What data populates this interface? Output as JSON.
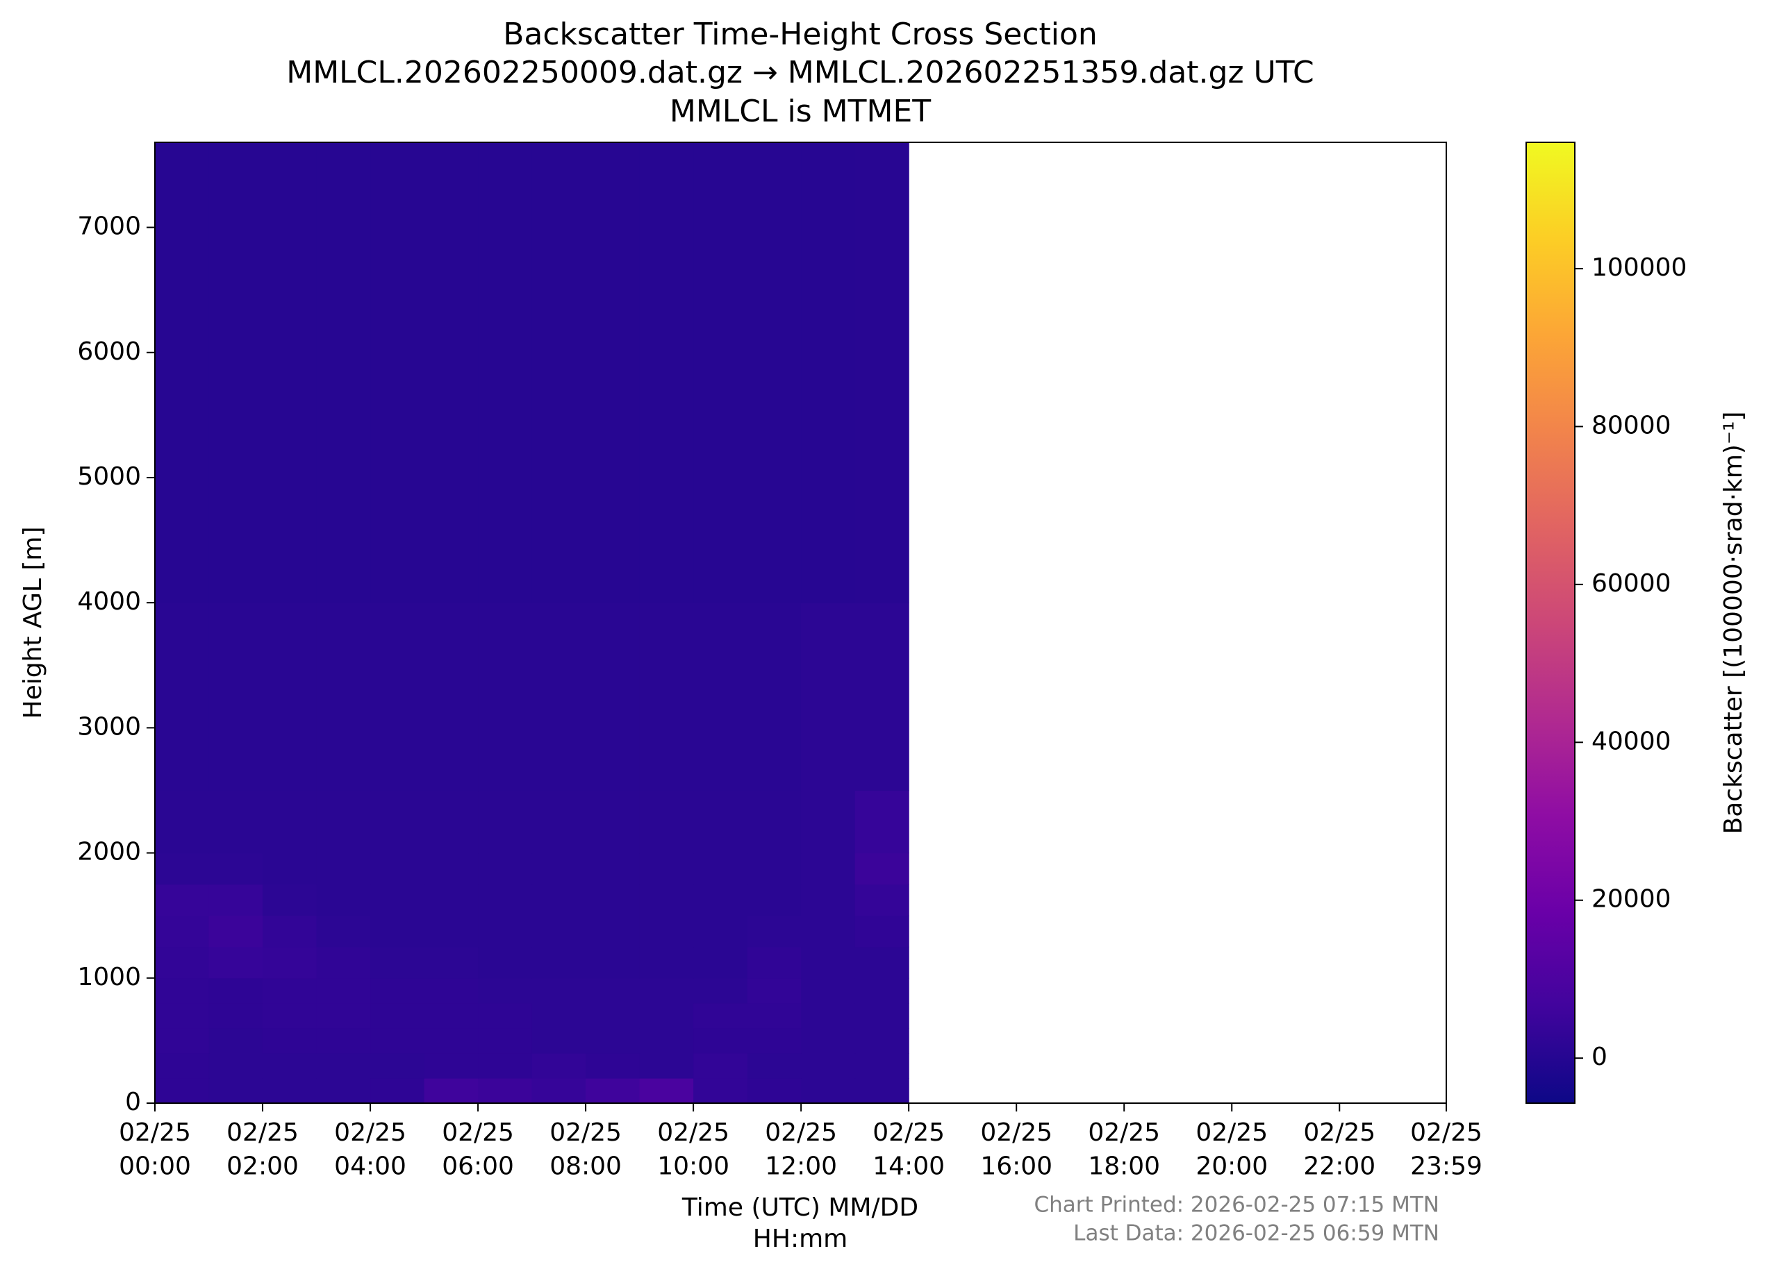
{
  "chart_data": {
    "type": "heatmap",
    "title": [
      "Backscatter Time-Height Cross Section",
      "MMLCL.202602250009.dat.gz → MMLCL.202602251359.dat.gz UTC",
      "MMLCL is MTMET"
    ],
    "xlabel": [
      "Time (UTC) MM/DD",
      "HH:mm"
    ],
    "ylabel": "Height AGL [m]",
    "colorbar_label": "Backscatter [(100000·srad·km)⁻¹]",
    "annotations": [
      "Chart Printed: 2026-02-25 07:15 MTN",
      "Last Data: 2026-02-25 06:59 MTN"
    ],
    "colormap": "plasma",
    "xlim": [
      0,
      23.9833
    ],
    "xticks": [
      {
        "value": 0,
        "label": "02/25\n00:00"
      },
      {
        "value": 2,
        "label": "02/25\n02:00"
      },
      {
        "value": 4,
        "label": "02/25\n04:00"
      },
      {
        "value": 6,
        "label": "02/25\n06:00"
      },
      {
        "value": 8,
        "label": "02/25\n08:00"
      },
      {
        "value": 10,
        "label": "02/25\n10:00"
      },
      {
        "value": 12,
        "label": "02/25\n12:00"
      },
      {
        "value": 14,
        "label": "02/25\n14:00"
      },
      {
        "value": 16,
        "label": "02/25\n16:00"
      },
      {
        "value": 18,
        "label": "02/25\n18:00"
      },
      {
        "value": 20,
        "label": "02/25\n20:00"
      },
      {
        "value": 22,
        "label": "02/25\n22:00"
      },
      {
        "value": 23.9833,
        "label": "02/25\n23:59"
      }
    ],
    "ylim": [
      0,
      7680
    ],
    "yticks": [
      0,
      1000,
      2000,
      3000,
      4000,
      5000,
      6000,
      7000
    ],
    "clim": [
      -5700,
      116000
    ],
    "cticks": [
      0,
      20000,
      40000,
      60000,
      80000,
      100000
    ],
    "x_edges": [
      0,
      1,
      2,
      3,
      4,
      5,
      6,
      7,
      8,
      9,
      10,
      11,
      12,
      13,
      14
    ],
    "y_edges": [
      0,
      200,
      400,
      600,
      800,
      1000,
      1250,
      1500,
      1750,
      2000,
      2500,
      4000,
      7680
    ],
    "values": [
      [
        2000,
        1500,
        1500,
        1500,
        2000,
        6000,
        5000,
        4000,
        6000,
        9000,
        3000,
        2000,
        1500,
        1500
      ],
      [
        2000,
        1500,
        1500,
        1500,
        1500,
        2000,
        2000,
        3000,
        2000,
        1500,
        3000,
        1500,
        1500,
        1500
      ],
      [
        2500,
        1500,
        2000,
        2000,
        2000,
        2000,
        2000,
        1500,
        1500,
        1500,
        2000,
        2000,
        1500,
        1500
      ],
      [
        2500,
        2000,
        2500,
        2500,
        2000,
        2000,
        2000,
        1500,
        1500,
        1500,
        2500,
        2500,
        1500,
        1500
      ],
      [
        2500,
        2000,
        2500,
        2500,
        2000,
        2000,
        1500,
        1500,
        1500,
        1500,
        1500,
        3000,
        1500,
        1500
      ],
      [
        3000,
        4000,
        3500,
        2500,
        1500,
        1500,
        1000,
        1000,
        1000,
        1000,
        1000,
        2500,
        1500,
        1500
      ],
      [
        3500,
        5000,
        3000,
        1500,
        1000,
        1000,
        1000,
        1000,
        1000,
        1000,
        1000,
        1500,
        1500,
        2500
      ],
      [
        4000,
        4000,
        1500,
        1000,
        1000,
        1000,
        1000,
        1000,
        1000,
        1000,
        1000,
        1000,
        1500,
        3500
      ],
      [
        1500,
        1500,
        1000,
        1000,
        1000,
        1000,
        1000,
        1000,
        1000,
        1000,
        1000,
        1000,
        1500,
        5000
      ],
      [
        1000,
        1000,
        1000,
        1000,
        1000,
        1000,
        1000,
        1000,
        1000,
        1000,
        1000,
        1000,
        1500,
        4000
      ],
      [
        800,
        800,
        800,
        800,
        800,
        800,
        800,
        800,
        800,
        800,
        800,
        800,
        1500,
        1500
      ],
      [
        500,
        500,
        500,
        500,
        500,
        500,
        500,
        500,
        500,
        500,
        500,
        500,
        500,
        600
      ]
    ]
  }
}
